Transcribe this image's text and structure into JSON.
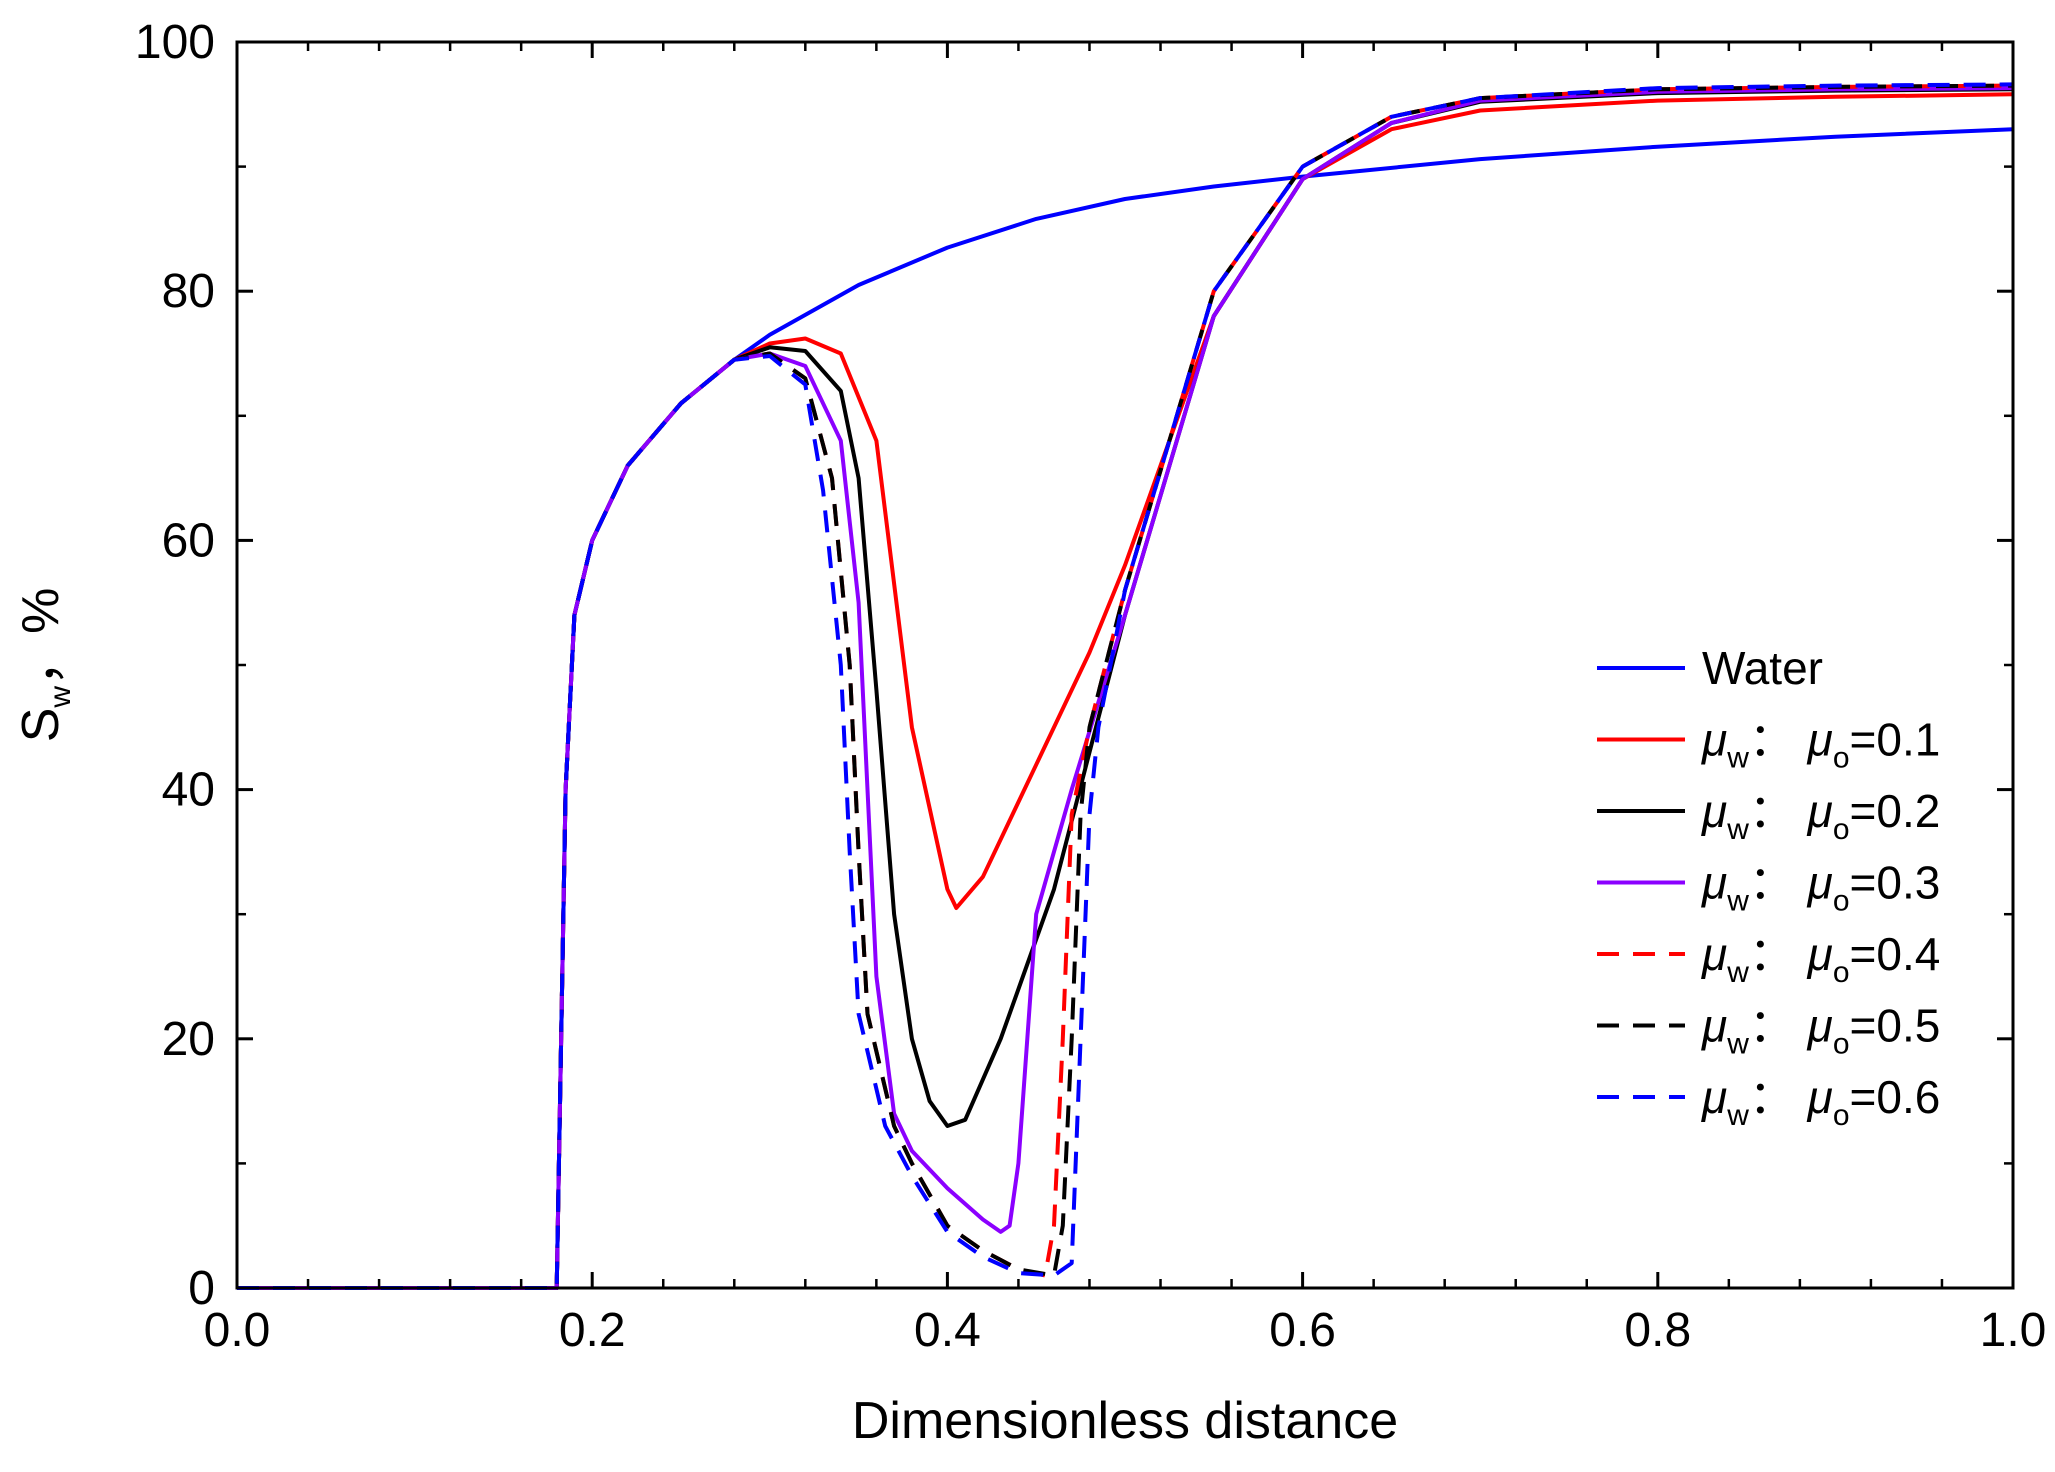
{
  "chart_data": {
    "type": "line",
    "title": "",
    "xlabel": "Dimensionless distance",
    "ylabel": "S",
    "ylabel_sub": "w",
    "ylabel_unit": "，%",
    "xlim": [
      0.0,
      1.0
    ],
    "ylim": [
      0,
      100
    ],
    "xticks": [
      "0.0",
      "0.2",
      "0.4",
      "0.6",
      "0.8",
      "1.0"
    ],
    "yticks": [
      "0",
      "20",
      "40",
      "60",
      "80",
      "100"
    ],
    "grid": false,
    "legend_position": "center-right",
    "series": [
      {
        "name": "Water",
        "color": "#0000ff",
        "dash": "solid",
        "x": [
          0,
          0.18,
          0.185,
          0.19,
          0.2,
          0.22,
          0.25,
          0.28,
          0.3,
          0.35,
          0.4,
          0.45,
          0.5,
          0.55,
          0.6,
          0.7,
          0.8,
          0.9,
          1.0
        ],
        "y": [
          0,
          0,
          40,
          54,
          60,
          66,
          71,
          74.5,
          76.5,
          80.5,
          83.5,
          85.8,
          87.4,
          88.4,
          89.2,
          90.6,
          91.6,
          92.4,
          93
        ]
      },
      {
        "name": "μw:μo=0.1",
        "label_parts": [
          "μ",
          "w",
          "：μ",
          "o",
          "=0.1"
        ],
        "color": "#ff0000",
        "dash": "solid",
        "x": [
          0,
          0.18,
          0.185,
          0.19,
          0.2,
          0.22,
          0.25,
          0.28,
          0.3,
          0.32,
          0.34,
          0.36,
          0.38,
          0.4,
          0.405,
          0.42,
          0.45,
          0.48,
          0.5,
          0.55,
          0.6,
          0.65,
          0.7,
          0.8,
          0.9,
          1.0
        ],
        "y": [
          0,
          0,
          40,
          54,
          60,
          66,
          71,
          74.5,
          75.8,
          76.2,
          75,
          68,
          45,
          32,
          30.5,
          33,
          42,
          51,
          58,
          78,
          89,
          93,
          94.5,
          95.3,
          95.6,
          95.8
        ]
      },
      {
        "name": "μw:μo=0.2",
        "label_parts": [
          "μ",
          "w",
          "：μ",
          "o",
          "=0.2"
        ],
        "color": "#000000",
        "dash": "solid",
        "x": [
          0,
          0.18,
          0.185,
          0.19,
          0.2,
          0.22,
          0.25,
          0.28,
          0.3,
          0.32,
          0.34,
          0.35,
          0.36,
          0.37,
          0.38,
          0.39,
          0.4,
          0.41,
          0.43,
          0.46,
          0.5,
          0.55,
          0.6,
          0.65,
          0.7,
          0.8,
          0.9,
          1.0
        ],
        "y": [
          0,
          0,
          40,
          54,
          60,
          66,
          71,
          74.5,
          75.5,
          75.2,
          72,
          65,
          48,
          30,
          20,
          15,
          13,
          13.5,
          20,
          32,
          54,
          78,
          89,
          93.5,
          95.2,
          95.9,
          96.1,
          96.2
        ]
      },
      {
        "name": "μw:μo=0.3",
        "label_parts": [
          "μ",
          "w",
          "：μ",
          "o",
          "=0.3"
        ],
        "color": "#8b00ff",
        "dash": "solid",
        "x": [
          0,
          0.18,
          0.185,
          0.19,
          0.2,
          0.22,
          0.25,
          0.28,
          0.3,
          0.32,
          0.34,
          0.35,
          0.355,
          0.36,
          0.37,
          0.38,
          0.4,
          0.42,
          0.43,
          0.435,
          0.44,
          0.45,
          0.47,
          0.5,
          0.55,
          0.6,
          0.65,
          0.7,
          0.8,
          0.9,
          1.0
        ],
        "y": [
          0,
          0,
          40,
          54,
          60,
          66,
          71,
          74.5,
          75,
          74,
          68,
          55,
          40,
          25,
          14,
          11,
          8,
          5.5,
          4.5,
          5,
          10,
          30,
          40,
          54,
          78,
          89,
          93.5,
          95.3,
          96,
          96.2,
          96.3
        ]
      },
      {
        "name": "μw:μo=0.4",
        "label_parts": [
          "μ",
          "w",
          "：μ",
          "o",
          "=0.4"
        ],
        "color": "#ff0000",
        "dash": "dashed",
        "x": [
          0,
          0.18,
          0.185,
          0.19,
          0.2,
          0.22,
          0.25,
          0.28,
          0.3,
          0.32,
          0.335,
          0.345,
          0.35,
          0.355,
          0.37,
          0.38,
          0.4,
          0.42,
          0.44,
          0.455,
          0.46,
          0.465,
          0.47,
          0.48,
          0.5,
          0.55,
          0.6,
          0.65,
          0.7,
          0.8,
          0.9,
          1.0
        ],
        "y": [
          0,
          0,
          40,
          54,
          60,
          66,
          71,
          74.5,
          75,
          73,
          65,
          50,
          35,
          22,
          13,
          10,
          5,
          3,
          1.5,
          1,
          5,
          20,
          38,
          45,
          56,
          80,
          90,
          94,
          95.5,
          96.2,
          96.4,
          96.5
        ]
      },
      {
        "name": "μw:μo=0.5",
        "label_parts": [
          "μ",
          "w",
          "：μ",
          "o",
          "=0.5"
        ],
        "color": "#000000",
        "dash": "dashed",
        "x": [
          0,
          0.18,
          0.185,
          0.19,
          0.2,
          0.22,
          0.25,
          0.28,
          0.3,
          0.32,
          0.335,
          0.345,
          0.35,
          0.355,
          0.37,
          0.38,
          0.4,
          0.42,
          0.44,
          0.46,
          0.465,
          0.47,
          0.475,
          0.48,
          0.5,
          0.55,
          0.6,
          0.65,
          0.7,
          0.8,
          0.9,
          1.0
        ],
        "y": [
          0,
          0,
          40,
          54,
          60,
          66,
          71,
          74.5,
          75,
          73,
          65,
          50,
          35,
          22,
          13,
          10,
          5,
          3,
          1.5,
          1,
          5,
          20,
          38,
          45,
          56,
          80,
          90,
          94,
          95.5,
          96.2,
          96.4,
          96.5
        ]
      },
      {
        "name": "μw:μo=0.6",
        "label_parts": [
          "μ",
          "w",
          "：μ",
          "o",
          "=0.6"
        ],
        "color": "#0000ff",
        "dash": "dashed",
        "x": [
          0,
          0.18,
          0.185,
          0.19,
          0.2,
          0.22,
          0.25,
          0.28,
          0.3,
          0.32,
          0.33,
          0.34,
          0.345,
          0.35,
          0.365,
          0.38,
          0.4,
          0.42,
          0.44,
          0.46,
          0.47,
          0.475,
          0.48,
          0.485,
          0.5,
          0.55,
          0.6,
          0.65,
          0.7,
          0.8,
          0.9,
          1.0
        ],
        "y": [
          0,
          0,
          40,
          54,
          60,
          66,
          71,
          74.5,
          74.8,
          72.5,
          64,
          50,
          35,
          22,
          13,
          9,
          4.5,
          2.5,
          1.2,
          1,
          2,
          20,
          38,
          45,
          56,
          80,
          90,
          94,
          95.5,
          96.3,
          96.5,
          96.6
        ]
      }
    ]
  }
}
